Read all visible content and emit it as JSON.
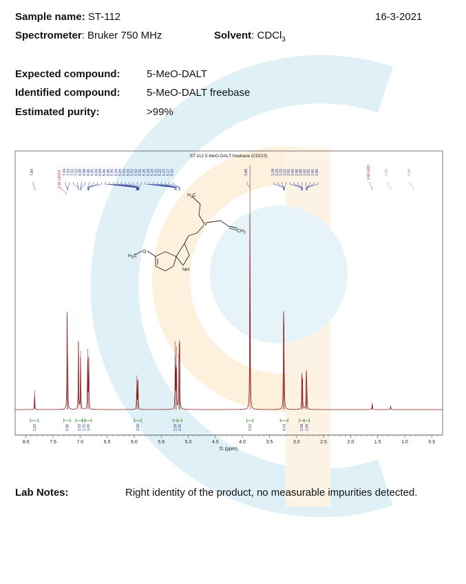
{
  "header": {
    "sample_label": "Sample name:",
    "sample_value": "ST-112",
    "date": "16-3-2021",
    "spectrometer_label": "Spectrometer",
    "spectrometer_value": ": Bruker 750 MHz",
    "solvent_label": "Solvent",
    "solvent_value": ": CDCl",
    "solvent_sub": "3"
  },
  "compound": {
    "expected_label": "Expected compound:",
    "expected_value": "5-MeO-DALT",
    "identified_label": "Identified compound:",
    "identified_value": "5-MeO-DALT freebase",
    "purity_label": "Estimated purity:",
    "purity_value": ">99%"
  },
  "notes": {
    "label": "Lab Notes:",
    "text": "Right identity of the product, no measurable impurities detected."
  },
  "colors": {
    "spectrum": "#8b1c1c",
    "peak_label": "#1f2f8f",
    "solvent_label": "#cc2222",
    "minor_label": "#999999",
    "integral": "#2a8a2a",
    "watermark_blue": "#dff1f7",
    "watermark_orange": "#fdf0dc"
  },
  "chart_data": {
    "type": "line",
    "title": "ST-112 5-MeO-DALT freebase (CDCl3)",
    "xlabel": "f1 (ppm)",
    "xlim": [
      8.2,
      0.3
    ],
    "x_reversed": true,
    "xticks": [
      "8.0",
      "7.5",
      "7.0",
      "6.5",
      "6.0",
      "5.5",
      "5.0",
      "4.5",
      "4.0",
      "3.5",
      "3.0",
      "2.5",
      "2.0",
      "1.5",
      "1.0",
      "0.5"
    ],
    "peak_groups": [
      {
        "labels": [
          "7.84"
        ],
        "color": "blue"
      },
      {
        "labels": [
          "7.26 CDCl3"
        ],
        "color": "red"
      },
      {
        "labels": [
          "7.24",
          "7.23",
          "7.03",
          "7.03",
          "6.99",
          "6.98",
          "6.86",
          "6.85",
          "6.84",
          "6.84",
          "5.96",
          "5.95",
          "5.95",
          "5.94",
          "5.94",
          "5.93",
          "5.93",
          "5.92",
          "5.92",
          "5.91",
          "5.25",
          "5.24",
          "5.24",
          "5.22",
          "5.22",
          "5.22",
          "5.17",
          "5.16"
        ],
        "color": "blue"
      },
      {
        "labels": [
          "3.86"
        ],
        "color": "blue"
      },
      {
        "labels": [
          "3.24",
          "3.23",
          "3.23",
          "3.22",
          "2.91",
          "2.90",
          "2.90",
          "2.89",
          "2.82",
          "2.81",
          "2.81",
          "2.80"
        ],
        "color": "blue"
      },
      {
        "labels": [
          "1.60 H2O"
        ],
        "color": "red"
      },
      {
        "labels": [
          "1.26"
        ],
        "color": "gray"
      },
      {
        "labels": [
          "0.84"
        ],
        "color": "gray"
      }
    ],
    "peaks": [
      {
        "ppm": 7.84,
        "height": 0.08
      },
      {
        "ppm": 7.24,
        "height": 0.37
      },
      {
        "ppm": 7.23,
        "height": 0.22
      },
      {
        "ppm": 7.03,
        "height": 0.28
      },
      {
        "ppm": 6.99,
        "height": 0.24
      },
      {
        "ppm": 6.86,
        "height": 0.25
      },
      {
        "ppm": 6.84,
        "height": 0.22
      },
      {
        "ppm": 5.95,
        "height": 0.14
      },
      {
        "ppm": 5.93,
        "height": 0.12
      },
      {
        "ppm": 5.24,
        "height": 0.28
      },
      {
        "ppm": 5.22,
        "height": 0.26
      },
      {
        "ppm": 5.17,
        "height": 0.27
      },
      {
        "ppm": 5.16,
        "height": 0.25
      },
      {
        "ppm": 3.86,
        "height": 1.0
      },
      {
        "ppm": 3.24,
        "height": 0.38
      },
      {
        "ppm": 3.23,
        "height": 0.35
      },
      {
        "ppm": 2.9,
        "height": 0.15
      },
      {
        "ppm": 2.89,
        "height": 0.12
      },
      {
        "ppm": 2.82,
        "height": 0.15
      },
      {
        "ppm": 2.81,
        "height": 0.13
      },
      {
        "ppm": 1.6,
        "height": 0.03
      },
      {
        "ppm": 1.26,
        "height": 0.015
      }
    ],
    "integrals": [
      {
        "from": 7.92,
        "to": 7.77,
        "value": "1.02"
      },
      {
        "from": 7.3,
        "to": 7.18,
        "value": "0.99"
      },
      {
        "from": 7.08,
        "to": 6.96,
        "value": "1.02"
      },
      {
        "from": 6.96,
        "to": 6.91,
        "value": "1.01"
      },
      {
        "from": 6.91,
        "to": 6.79,
        "value": "1.00"
      },
      {
        "from": 6.0,
        "to": 5.87,
        "value": "2.00"
      },
      {
        "from": 5.28,
        "to": 5.2,
        "value": "2.09"
      },
      {
        "from": 5.2,
        "to": 5.12,
        "value": "2.05"
      },
      {
        "from": 3.92,
        "to": 3.8,
        "value": "3.13"
      },
      {
        "from": 3.3,
        "to": 3.16,
        "value": "4.14"
      },
      {
        "from": 2.95,
        "to": 2.86,
        "value": "2.08"
      },
      {
        "from": 2.86,
        "to": 2.76,
        "value": "2.09"
      }
    ],
    "structure_labels": {
      "vinyl_top": "H",
      "vinyl_top_sub": "2",
      "vinyl_top_suffix": "C",
      "n_label": "N",
      "vinyl_right": "CH",
      "vinyl_right_sub": "2",
      "methoxy": "H",
      "methoxy_sub": "3",
      "methoxy_suffix": "C",
      "o_label": "O",
      "nh_label": "NH"
    }
  }
}
